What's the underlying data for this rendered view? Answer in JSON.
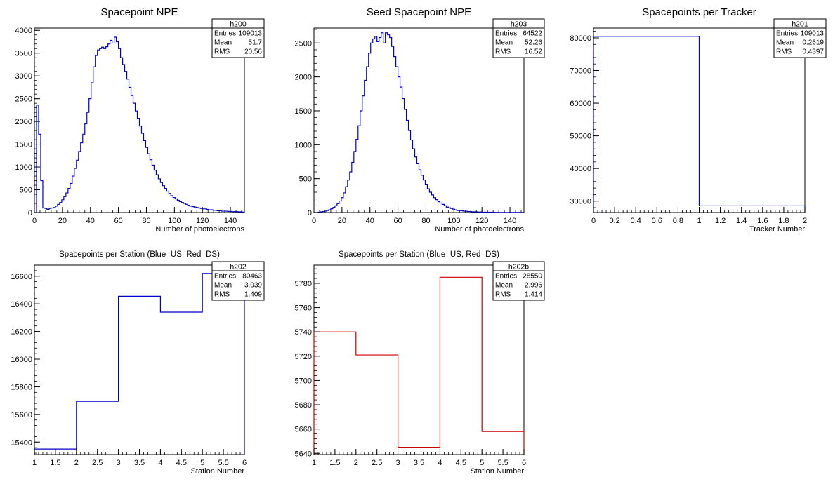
{
  "chart_data": [
    {
      "type": "histogram",
      "name": "h200",
      "title": "Spacepoint NPE",
      "xlabel": "Number of photoelectrons",
      "ylabel": "",
      "xlim": [
        0,
        150
      ],
      "ylim": [
        0,
        4050
      ],
      "xticks": [
        0,
        20,
        40,
        60,
        80,
        100,
        120,
        140
      ],
      "yticks": [
        0,
        500,
        1000,
        1500,
        2000,
        2500,
        3000,
        3500,
        4000
      ],
      "bin_width": 1.5,
      "color": "#0000cc",
      "stats": [
        [
          "Entries",
          "109013"
        ],
        [
          "Mean",
          "51.7"
        ],
        [
          "RMS",
          "20.56"
        ]
      ],
      "values": [
        0,
        2360,
        1720,
        700,
        100,
        90,
        70,
        90,
        100,
        110,
        140,
        180,
        220,
        280,
        350,
        430,
        530,
        640,
        800,
        970,
        1150,
        1340,
        1530,
        1720,
        1950,
        2200,
        2500,
        2850,
        3200,
        3450,
        3570,
        3600,
        3630,
        3600,
        3640,
        3700,
        3780,
        3720,
        3850,
        3750,
        3600,
        3400,
        3250,
        3100,
        2930,
        2750,
        2570,
        2400,
        2230,
        2070,
        1900,
        1740,
        1580,
        1430,
        1290,
        1160,
        1040,
        930,
        830,
        740,
        660,
        590,
        530,
        470,
        420,
        370,
        330,
        300,
        270,
        240,
        220,
        200,
        180,
        160,
        140,
        130,
        120,
        110,
        100,
        90,
        80,
        80,
        70,
        60,
        60,
        50,
        50,
        40,
        40,
        30,
        30,
        30,
        25,
        25,
        20,
        20,
        20,
        15,
        15,
        10
      ]
    },
    {
      "type": "histogram",
      "name": "h203",
      "title": "Seed Spacepoint NPE",
      "xlabel": "Number of photoelectrons",
      "ylabel": "",
      "xlim": [
        0,
        150
      ],
      "ylim": [
        0,
        2720
      ],
      "xticks": [
        0,
        20,
        40,
        60,
        80,
        100,
        120,
        140
      ],
      "yticks": [
        0,
        500,
        1000,
        1500,
        2000,
        2500
      ],
      "bin_width": 1.5,
      "color": "#0000cc",
      "stats": [
        [
          "Entries",
          "64522"
        ],
        [
          "Mean",
          "52.26"
        ],
        [
          "RMS",
          "16.52"
        ]
      ],
      "values": [
        0,
        0,
        5,
        10,
        15,
        20,
        30,
        40,
        55,
        75,
        100,
        130,
        170,
        220,
        290,
        380,
        480,
        600,
        740,
        900,
        1080,
        1280,
        1500,
        1720,
        1950,
        2150,
        2350,
        2500,
        2560,
        2600,
        2520,
        2580,
        2650,
        2500,
        2650,
        2620,
        2580,
        2450,
        2300,
        2150,
        2000,
        1850,
        1680,
        1520,
        1360,
        1210,
        1070,
        940,
        820,
        720,
        630,
        550,
        480,
        410,
        350,
        300,
        260,
        220,
        190,
        160,
        140,
        120,
        100,
        80,
        70,
        60,
        50,
        40,
        30,
        30,
        25,
        20,
        20,
        15,
        15,
        10,
        10,
        10,
        8,
        8,
        5,
        5,
        5,
        5,
        5,
        3,
        3,
        3,
        2,
        2,
        2,
        2,
        2,
        1,
        1,
        1,
        1,
        1,
        1,
        1
      ]
    },
    {
      "type": "histogram",
      "name": "h201",
      "title": "Spacepoints per Tracker",
      "xlabel": "Tracker Number",
      "ylabel": "",
      "xlim": [
        0,
        2
      ],
      "ylim": [
        26500,
        83000
      ],
      "xticks": [
        0,
        0.2,
        0.4,
        0.6,
        0.8,
        1,
        1.2,
        1.4,
        1.6,
        1.8,
        2
      ],
      "yticks": [
        30000,
        40000,
        50000,
        60000,
        70000,
        80000
      ],
      "bin_width": 1,
      "color": "#0000cc",
      "stats": [
        [
          "Entries",
          "109013"
        ],
        [
          "Mean",
          "0.2619"
        ],
        [
          "RMS",
          "0.4397"
        ]
      ],
      "values": [
        80463,
        28550
      ]
    },
    {
      "type": "histogram",
      "name": "h202",
      "title": "Spacepoints per Station (Blue=US, Red=DS)",
      "xlabel": "Station Number",
      "ylabel": "",
      "xlim": [
        1,
        6
      ],
      "ylim": [
        15310,
        16680
      ],
      "xticks": [
        1,
        1.5,
        2,
        2.5,
        3,
        3.5,
        4,
        4.5,
        5,
        5.5,
        6
      ],
      "yticks": [
        15400,
        15600,
        15800,
        16000,
        16200,
        16400,
        16600
      ],
      "bin_width": 1,
      "color": "#0000cc",
      "stats": [
        [
          "Entries",
          "80463"
        ],
        [
          "Mean",
          "3.039"
        ],
        [
          "RMS",
          "1.409"
        ]
      ],
      "values": [
        15350,
        15695,
        16455,
        16340,
        16620
      ]
    },
    {
      "type": "histogram",
      "name": "h202b",
      "title": "Spacepoints per Station (Blue=US, Red=DS)",
      "xlabel": "Station Number",
      "ylabel": "",
      "xlim": [
        1,
        6
      ],
      "ylim": [
        5639,
        5795
      ],
      "xticks": [
        1,
        1.5,
        2,
        2.5,
        3,
        3.5,
        4,
        4.5,
        5,
        5.5,
        6
      ],
      "yticks": [
        5640,
        5660,
        5680,
        5700,
        5720,
        5740,
        5760,
        5780
      ],
      "bin_width": 1,
      "color": "#cc0000",
      "stats": [
        [
          "Entries",
          "28550"
        ],
        [
          "Mean",
          "2.996"
        ],
        [
          "RMS",
          "1.414"
        ]
      ],
      "values": [
        5740,
        5721,
        5645,
        5785,
        5658
      ]
    }
  ]
}
